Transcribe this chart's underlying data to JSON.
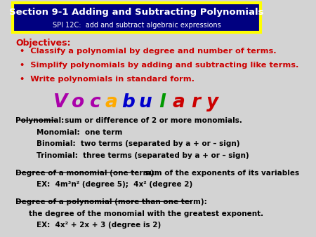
{
  "bg_color": "#d3d3d3",
  "header_bg": "#000080",
  "header_border": "#ffff00",
  "title_text": "Section 9-1 Adding and Subtracting Polynomials",
  "subtitle_text": "SPI 12C:  add and subtract algebraic expressions",
  "objectives_label": "Objectives:",
  "objectives_color": "#cc0000",
  "objectives": [
    "Classify a polynomial by degree and number of terms.",
    "Simplify polynomials by adding and subtracting like terms.",
    "Write polynomials in standard form."
  ],
  "vocab_letters": [
    {
      "char": "V",
      "color": "#aa00aa"
    },
    {
      "char": "o",
      "color": "#aa00aa"
    },
    {
      "char": "c",
      "color": "#aa00aa"
    },
    {
      "char": "a",
      "color": "#ffaa00"
    },
    {
      "char": "b",
      "color": "#0000cc"
    },
    {
      "char": "u",
      "color": "#0000cc"
    },
    {
      "char": "l",
      "color": "#009900"
    },
    {
      "char": "a",
      "color": "#cc0000"
    },
    {
      "char": "r",
      "color": "#cc0000"
    },
    {
      "char": "y",
      "color": "#cc0000"
    }
  ],
  "body_color": "#000000",
  "figsize": [
    4.5,
    3.38
  ],
  "dpi": 100
}
